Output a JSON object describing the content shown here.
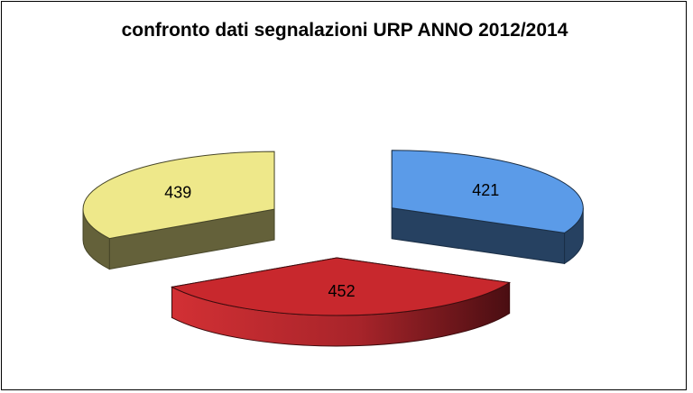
{
  "chart_data": {
    "type": "pie",
    "title": "confronto dati segnalazioni URP ANNO 2012/2014",
    "three_d": true,
    "exploded": true,
    "legend": "none",
    "slices": [
      {
        "value": 421,
        "label": "421",
        "color": "#5B9BE8"
      },
      {
        "value": 452,
        "label": "452",
        "color": "#C8282D"
      },
      {
        "value": 439,
        "label": "439",
        "color": "#EEE88A"
      }
    ]
  }
}
